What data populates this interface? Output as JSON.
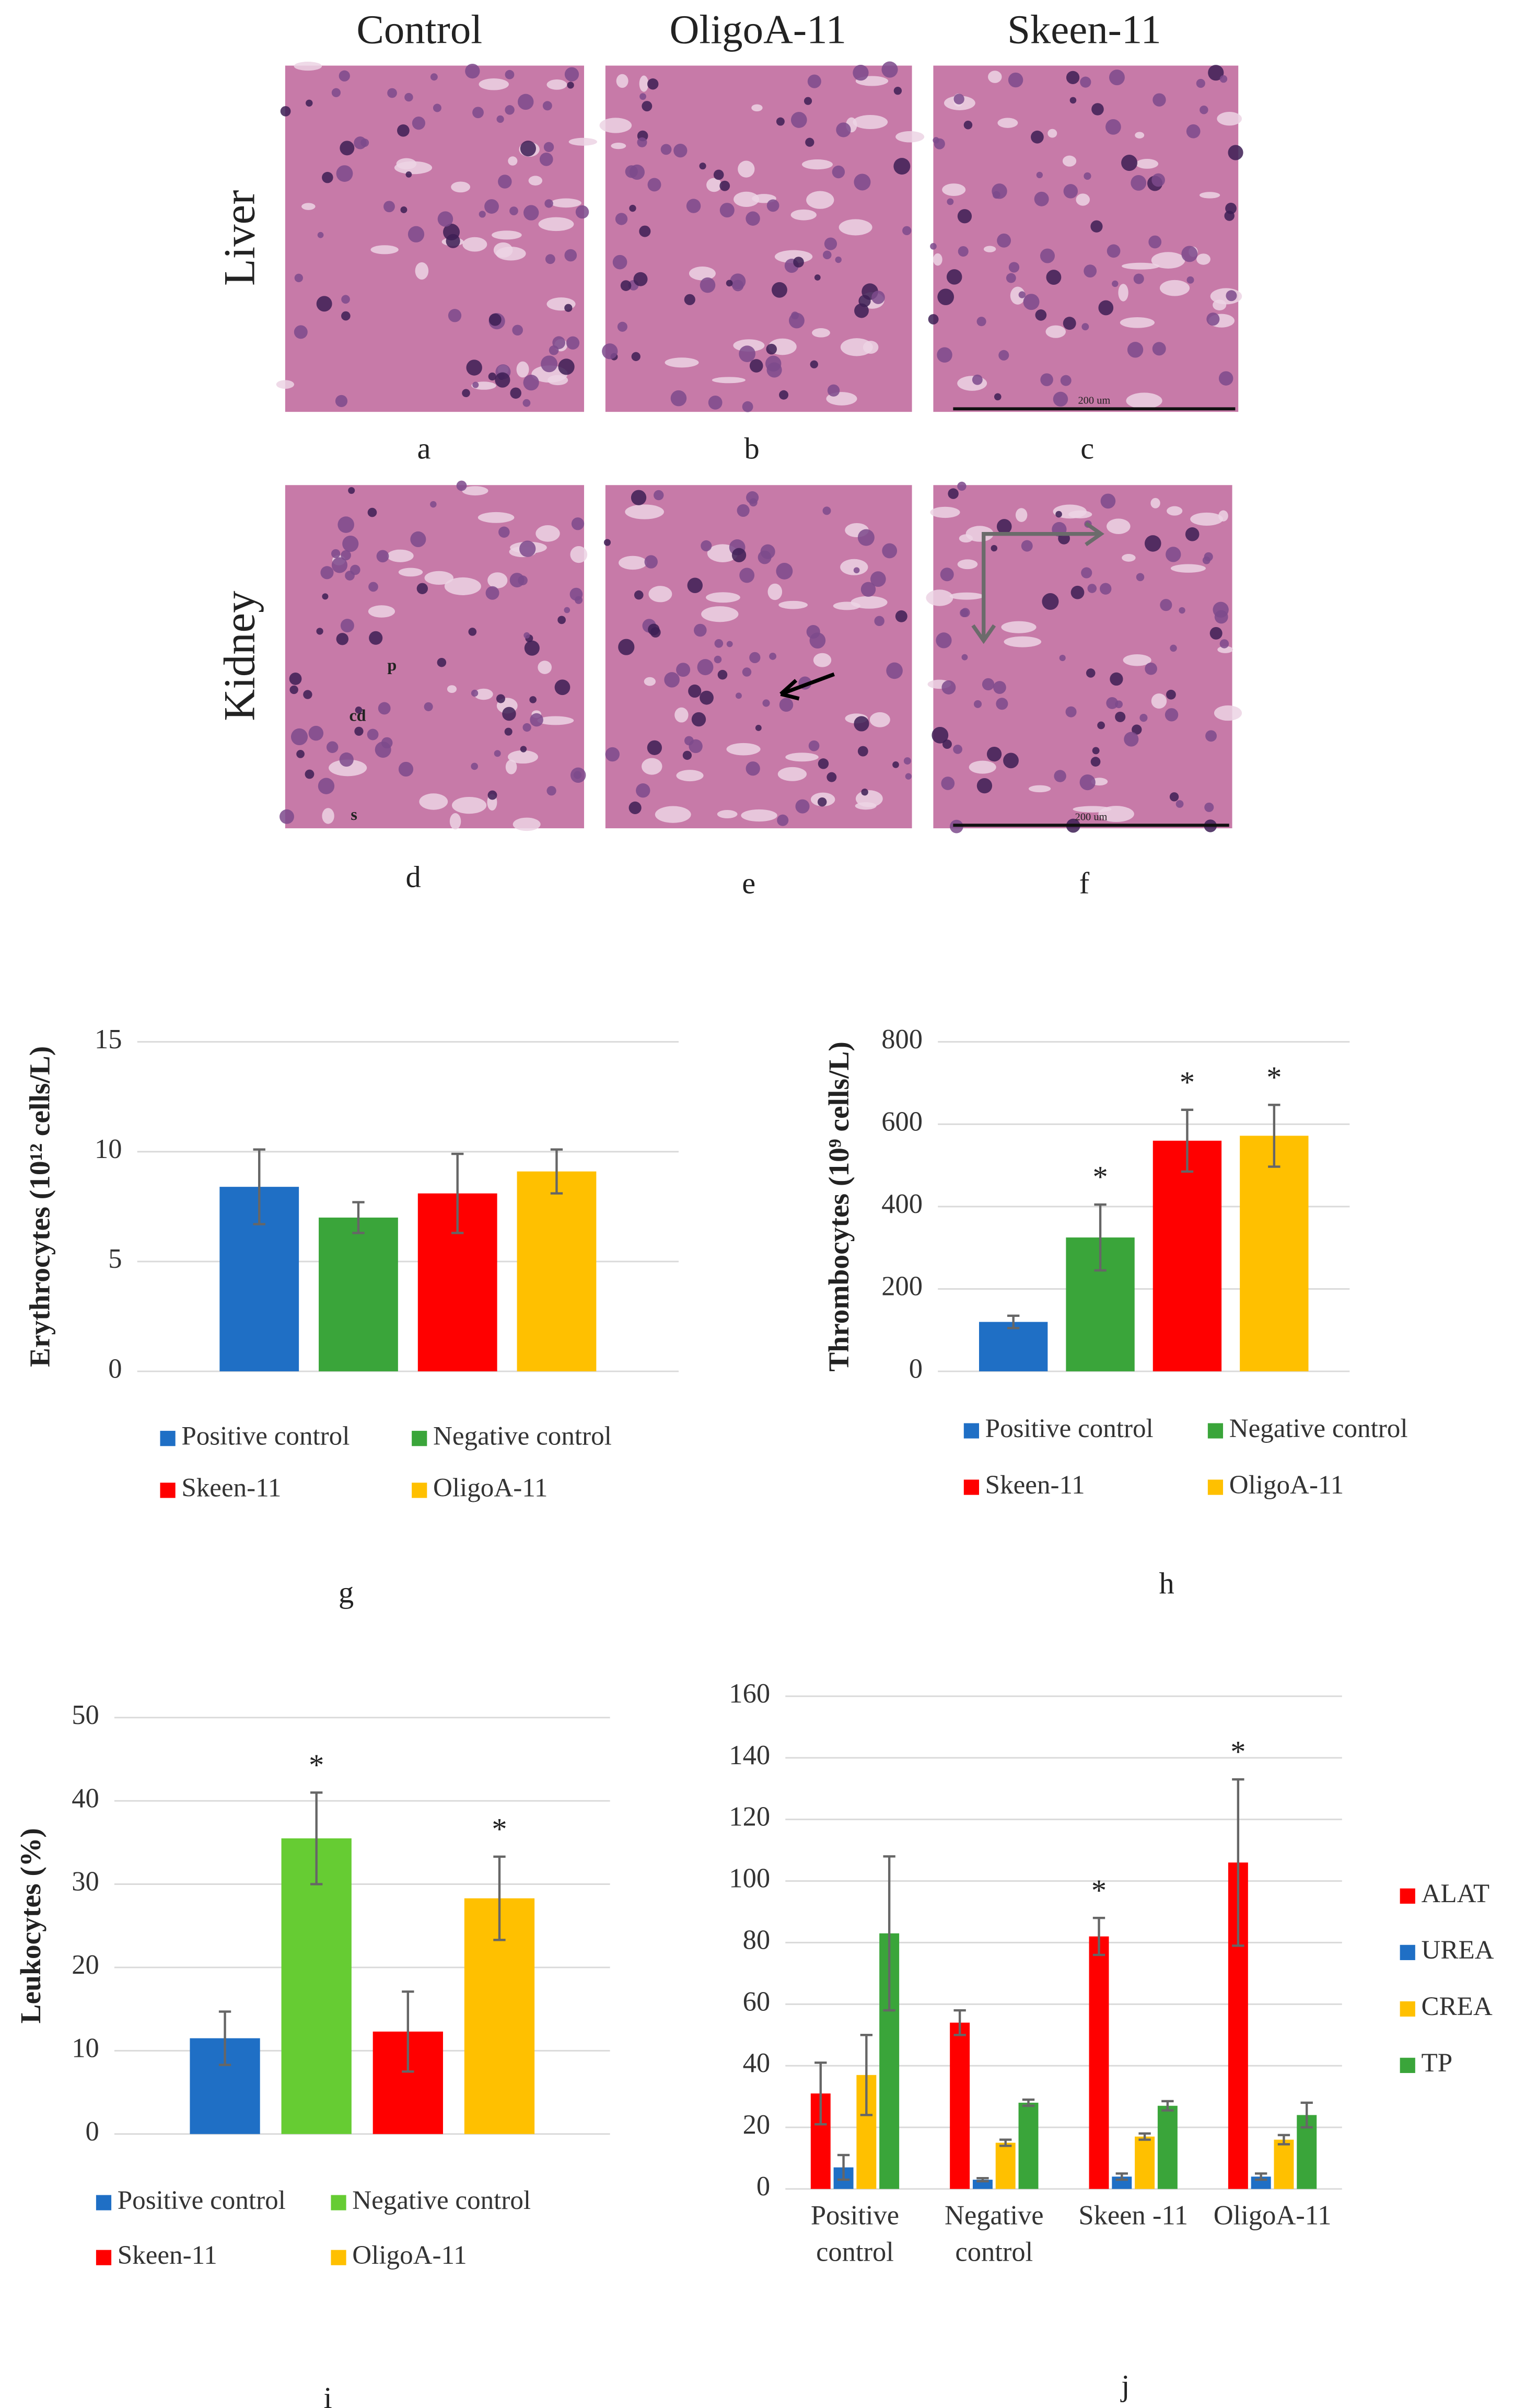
{
  "figure": {
    "columns": [
      "Control",
      "OligoA-11",
      "Skeen-11"
    ],
    "rows": [
      "Liver",
      "Kidney"
    ],
    "panels": [
      "a",
      "b",
      "c",
      "d",
      "e",
      "f"
    ],
    "annotations": [
      "p",
      "cd",
      "s"
    ],
    "scale_bar": "200 um"
  },
  "chart_data": [
    {
      "type": "bar",
      "label": "g",
      "y_label": "Erythrocytes (10¹² cells/L)",
      "categories": [
        null
      ],
      "series": [
        {
          "name": "Positive control",
          "color": "#1f6fc5",
          "values": [
            8.4
          ],
          "errors": [
            1.7
          ]
        },
        {
          "name": "Negative control",
          "color": "#3aa53a",
          "values": [
            7.0
          ],
          "errors": [
            0.7
          ]
        },
        {
          "name": "Skeen-11",
          "color": "#ff0000",
          "values": [
            8.1
          ],
          "errors": [
            1.8
          ]
        },
        {
          "name": "OligoA-11",
          "color": "#ffc000",
          "values": [
            9.1
          ],
          "errors": [
            1.0
          ]
        }
      ],
      "ylim": [
        0,
        15
      ],
      "yticks": [
        0,
        5,
        10,
        15
      ],
      "grid": true,
      "legend": "bottom"
    },
    {
      "type": "bar",
      "label": "h",
      "y_label": "Thrombocytes (10⁹ cells/L)",
      "categories": [
        null
      ],
      "series": [
        {
          "name": "Positive control",
          "color": "#1f6fc5",
          "values": [
            120
          ],
          "errors": [
            15
          ]
        },
        {
          "name": "Negative control",
          "color": "#3aa53a",
          "values": [
            325
          ],
          "errors": [
            80
          ],
          "significance": [
            "*"
          ]
        },
        {
          "name": "Skeen-11",
          "color": "#ff0000",
          "values": [
            560
          ],
          "errors": [
            75
          ],
          "significance": [
            "*"
          ]
        },
        {
          "name": "OligoA-11",
          "color": "#ffc000",
          "values": [
            572
          ],
          "errors": [
            75
          ],
          "significance": [
            "*"
          ]
        }
      ],
      "ylim": [
        0,
        800
      ],
      "yticks": [
        0,
        200,
        400,
        600,
        800
      ],
      "grid": true,
      "legend": "bottom"
    },
    {
      "type": "bar",
      "label": "i",
      "y_label": "Leukocytes (%)",
      "categories": [
        null
      ],
      "series": [
        {
          "name": "Positive control",
          "color": "#1f6fc5",
          "values": [
            11.5
          ],
          "errors": [
            3.2
          ]
        },
        {
          "name": "Negative control",
          "color": "#66cc33",
          "values": [
            35.5
          ],
          "errors": [
            5.5
          ],
          "significance": [
            "*"
          ]
        },
        {
          "name": "Skeen-11",
          "color": "#ff0000",
          "values": [
            12.3
          ],
          "errors": [
            4.8
          ]
        },
        {
          "name": "OligoA-11",
          "color": "#ffc000",
          "values": [
            28.3
          ],
          "errors": [
            5.0
          ],
          "significance": [
            "*"
          ]
        }
      ],
      "ylim": [
        0,
        50
      ],
      "yticks": [
        0,
        10,
        20,
        30,
        40,
        50
      ],
      "grid": true,
      "legend": "bottom"
    },
    {
      "type": "bar",
      "label": "j",
      "categories": [
        [
          "Positive",
          "control"
        ],
        [
          "Negative",
          "control"
        ],
        [
          "Skeen -11"
        ],
        [
          "OligoA-11"
        ]
      ],
      "series": [
        {
          "name": "ALAT",
          "color": "#ff0000",
          "values": [
            31,
            54,
            82,
            106
          ],
          "errors": [
            10,
            4,
            6,
            27
          ],
          "significance": [
            null,
            null,
            "*",
            "*"
          ]
        },
        {
          "name": "UREA",
          "color": "#1f6fc5",
          "values": [
            7,
            3,
            4,
            4
          ],
          "errors": [
            4,
            0.5,
            1,
            1
          ]
        },
        {
          "name": "CREA",
          "color": "#ffc000",
          "values": [
            37,
            15,
            17,
            16
          ],
          "errors": [
            13,
            1,
            1,
            1.5
          ]
        },
        {
          "name": "TP",
          "color": "#3aa53a",
          "values": [
            83,
            28,
            27,
            24
          ],
          "errors": [
            25,
            1,
            1.5,
            4
          ]
        }
      ],
      "ylim": [
        0,
        160
      ],
      "yticks": [
        0,
        20,
        40,
        60,
        80,
        100,
        120,
        140,
        160
      ],
      "grid": true,
      "legend": "right"
    }
  ]
}
